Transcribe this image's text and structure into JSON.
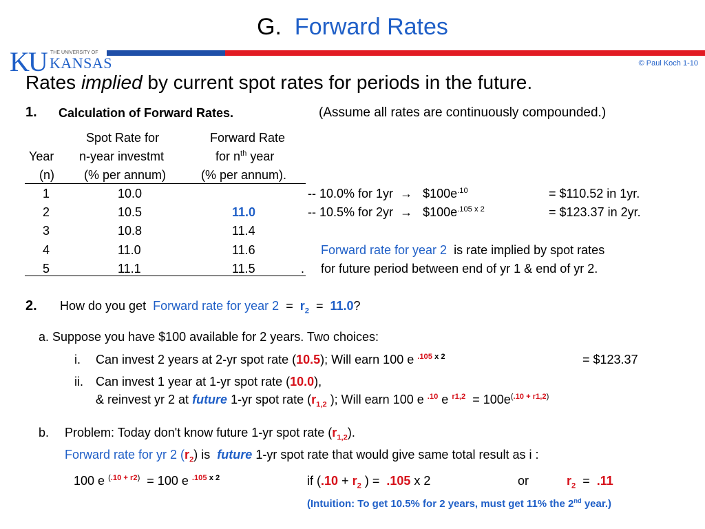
{
  "title": {
    "prefix": "G.",
    "main": "Forward Rates"
  },
  "header": {
    "copyright": "© Paul Koch 1-10",
    "logo_small": "THE UNIVERSITY OF",
    "logo_name": "KANSAS",
    "logo_letters": "KU"
  },
  "subtitle": {
    "pre": "Rates",
    "italic": "implied",
    "post": "by current spot rates for periods in the future."
  },
  "section1": {
    "num": "1.",
    "heading": "Calculation of Forward Rates.",
    "note": "(Assume all rates are continuously compounded.)"
  },
  "table": {
    "headers": {
      "col1": [
        "Year",
        "(n)"
      ],
      "col2": [
        "Spot Rate for",
        "n-year investmt",
        "(% per annum)"
      ],
      "col3_a": "Forward Rate",
      "col3_b1": "for n",
      "col3_b_sup": "th",
      "col3_b2": " year",
      "col3_c": "(% per annum)."
    },
    "rows": [
      {
        "year": "1",
        "spot": "10.0",
        "fwd": ""
      },
      {
        "year": "2",
        "spot": "10.5",
        "fwd": "11.0"
      },
      {
        "year": "3",
        "spot": "10.8",
        "fwd": "11.4"
      },
      {
        "year": "4",
        "spot": "11.0",
        "fwd": "11.6"
      },
      {
        "year": "5",
        "spot": "11.1",
        "fwd": "11.5"
      }
    ],
    "trailing_period": "."
  },
  "calc1": {
    "a": "--  10.0% for  1yr",
    "arrow": "→",
    "b": "$100e",
    "exp": ".10",
    "c": "=  $110.52  in  1yr."
  },
  "calc2": {
    "a": "--  10.5% for  2yr",
    "arrow": "→",
    "b": "$100e",
    "exp": ".105 x 2",
    "c": "=  $123.37  in  2yr."
  },
  "explain": {
    "blue": "Forward rate for  year 2",
    "rest": "is rate implied by spot rates",
    "line2": "for future period between  end of yr 1  &  end of yr 2."
  },
  "section2": {
    "num": "2.",
    "q_pre": "How do you get",
    "q_blue": "Forward rate for year 2",
    "eq": "=",
    "r": "r",
    "r_sub": "2",
    "eq2": "=",
    "val": "11.0",
    "q_end": "?"
  },
  "part_a": {
    "intro": "a.  Suppose you have $100 available for 2 years.  Two choices:",
    "i_label": "i.",
    "i_text": "Can invest  2 years at 2-yr spot rate (",
    "i_rate": "10.5",
    "i_mid": ");    Will earn  100 e",
    "i_exp": ".105",
    "i_exp2": " x 2",
    "i_result": "=  $123.37",
    "ii_label": "ii.",
    "ii_text": "Can invest  1 year   at 1-yr spot rate (",
    "ii_rate": "10.0",
    "ii_end": "),",
    "ii2_pre": "& reinvest yr 2 at",
    "ii2_future": "future",
    "ii2_mid": "1-yr spot rate (",
    "ii2_r": "r",
    "ii2_rsub": "1,2",
    "ii2_mid2": ");  Will earn  100 e",
    "ii2_exp": ".10",
    "ii2_e": "e",
    "ii2_exp2": "r1,2",
    "ii2_eq": "= 100e",
    "ii2_paren_open": "(",
    "ii2_exp3": ".10 + r1,2",
    "ii2_paren_close": ")"
  },
  "part_b": {
    "label": "b.",
    "text": "Problem:  Today don't know future 1-yr spot rate  (",
    "r": "r",
    "r_sub": "1,2",
    "end": ").",
    "line2_blue": "Forward rate for yr 2 (",
    "line2_r": "r",
    "line2_rsub": "2",
    "line2_mid": ") is",
    "line2_future": "future",
    "line2_end": "1-yr spot rate  that would give same total result as  i :"
  },
  "equation": {
    "lhs": "100 e",
    "lhs_exp_open": "(",
    "lhs_exp": ".10 + r2",
    "lhs_exp_close": ")",
    "eq": "=  100 e",
    "rhs_exp": ".105",
    "rhs_exp2": " x 2",
    "if": "if  (",
    "if_a": ".10",
    "if_plus": "+",
    "if_r": "r",
    "if_rsub": "2",
    "if_mid": ")  =",
    "if_b": ".105",
    "if_end": "x 2",
    "or": "or",
    "final_r": "r",
    "final_rsub": "2",
    "final_eq": "=",
    "final_val": ".11"
  },
  "intuition": {
    "text": "(Intuition:   To get  10.5%  for  2 years,  must get  11%  the  2",
    "sup": "nd",
    "end": "  year.)"
  }
}
